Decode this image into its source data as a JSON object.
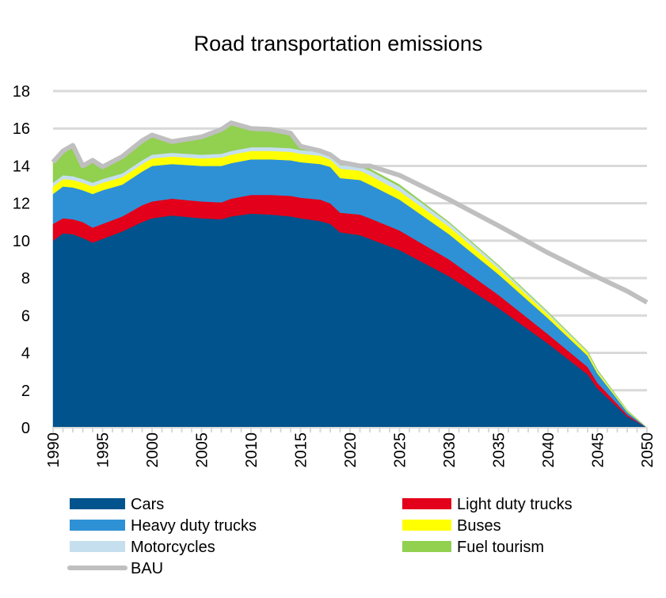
{
  "chart_data": {
    "type": "area",
    "stacked": true,
    "title": "Road transportation emissions",
    "xlabel": "",
    "ylabel": "",
    "ylim": [
      0,
      18
    ],
    "xlim": [
      1990,
      2050
    ],
    "yticks": [
      0,
      2,
      4,
      6,
      8,
      10,
      12,
      14,
      16,
      18
    ],
    "xticks": [
      1990,
      1995,
      2000,
      2005,
      2010,
      2015,
      2020,
      2025,
      2030,
      2035,
      2040,
      2045,
      2050
    ],
    "grid": "horizontal",
    "legend_position": "bottom",
    "x": [
      1990,
      1991,
      1992,
      1993,
      1994,
      1995,
      1997,
      1999,
      2000,
      2002,
      2005,
      2007,
      2008,
      2010,
      2012,
      2014,
      2015,
      2017,
      2018,
      2019,
      2021,
      2022,
      2025,
      2030,
      2035,
      2040,
      2044,
      2045,
      2048,
      2050
    ],
    "series": [
      {
        "name": "Cars",
        "color": "#00538c",
        "values": [
          10.0,
          10.4,
          10.35,
          10.15,
          9.9,
          10.1,
          10.5,
          11.0,
          11.2,
          11.35,
          11.2,
          11.15,
          11.3,
          11.45,
          11.4,
          11.3,
          11.2,
          11.05,
          10.9,
          10.45,
          10.3,
          10.1,
          9.5,
          8.1,
          6.4,
          4.5,
          2.85,
          2.1,
          0.6,
          0
        ]
      },
      {
        "name": "Light duty trucks",
        "color": "#e2001a",
        "values": [
          0.9,
          0.8,
          0.8,
          0.85,
          0.8,
          0.8,
          0.8,
          0.9,
          0.9,
          0.9,
          0.9,
          0.9,
          0.95,
          1.0,
          1.05,
          1.1,
          1.1,
          1.15,
          1.1,
          1.05,
          1.1,
          1.1,
          1.05,
          0.9,
          0.7,
          0.5,
          0.4,
          0.3,
          0.1,
          0
        ]
      },
      {
        "name": "Heavy duty trucks",
        "color": "#2e91d6",
        "values": [
          1.6,
          1.7,
          1.7,
          1.7,
          1.8,
          1.8,
          1.7,
          1.8,
          1.9,
          1.85,
          1.9,
          1.95,
          1.9,
          1.9,
          1.9,
          1.9,
          1.9,
          1.9,
          1.95,
          1.85,
          1.85,
          1.8,
          1.65,
          1.35,
          1.1,
          0.85,
          0.6,
          0.5,
          0.15,
          0
        ]
      },
      {
        "name": "Buses",
        "color": "#ffff00",
        "values": [
          0.4,
          0.4,
          0.4,
          0.4,
          0.4,
          0.4,
          0.4,
          0.4,
          0.4,
          0.4,
          0.4,
          0.45,
          0.45,
          0.45,
          0.45,
          0.45,
          0.45,
          0.45,
          0.4,
          0.5,
          0.5,
          0.5,
          0.45,
          0.4,
          0.3,
          0.2,
          0.15,
          0.1,
          0.05,
          0
        ]
      },
      {
        "name": "Motorcycles",
        "color": "#c5dfee",
        "values": [
          0.2,
          0.2,
          0.2,
          0.2,
          0.2,
          0.2,
          0.2,
          0.2,
          0.2,
          0.2,
          0.2,
          0.2,
          0.2,
          0.2,
          0.2,
          0.2,
          0.2,
          0.2,
          0.2,
          0.2,
          0.2,
          0.25,
          0.25,
          0.2,
          0.15,
          0.1,
          0.05,
          0.05,
          0.02,
          0
        ]
      },
      {
        "name": "Fuel tourism",
        "color": "#92d050",
        "values": [
          1.1,
          1.3,
          1.65,
          0.7,
          1.2,
          0.65,
          0.9,
          1.05,
          1.05,
          0.6,
          0.95,
          1.3,
          1.5,
          1.0,
          0.95,
          0.8,
          0.2,
          0.05,
          0.05,
          0.15,
          0.05,
          0.1,
          0.1,
          0.05,
          0.05,
          0.05,
          0.05,
          0.05,
          0.03,
          0
        ]
      }
    ],
    "line_series": [
      {
        "name": "BAU",
        "color": "#bfbfbf",
        "values": [
          14.2,
          14.8,
          15.1,
          14.0,
          14.3,
          13.95,
          14.5,
          15.35,
          15.65,
          15.3,
          15.55,
          15.95,
          16.3,
          16.0,
          15.95,
          15.75,
          15.05,
          14.8,
          14.6,
          14.2,
          14.0,
          14.0,
          13.5,
          12.2,
          10.8,
          9.35,
          8.3,
          8.05,
          7.3,
          6.7
        ]
      }
    ]
  }
}
